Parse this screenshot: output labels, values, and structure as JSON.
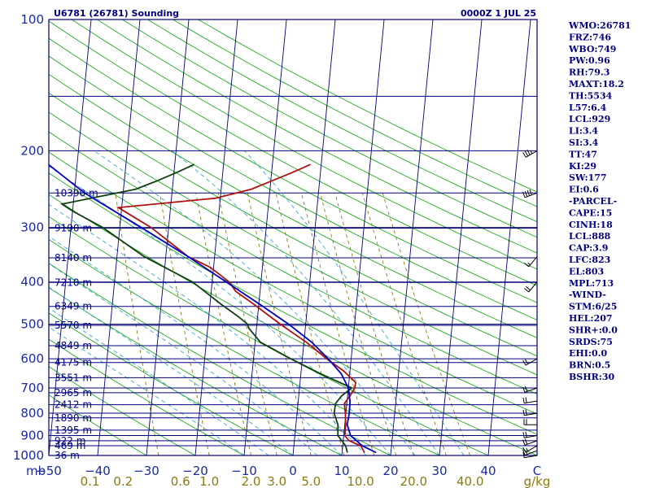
{
  "header": {
    "station": "U6781 (26781) Sounding",
    "time": "0000Z  1 JUL 25"
  },
  "indices": [
    "WMO:26781",
    "FRZ:746",
    "WBO:749",
    "PW:0.96",
    "RH:79.3",
    "MAXT:18.2",
    "TH:5534",
    "L57:6.4",
    "LCL:929",
    "LI:3.4",
    "SI:3.4",
    "TT:47",
    "KI:29",
    "SW:177",
    "EI:0.6",
    "-PARCEL-",
    "CAPE:15",
    "CINH:18",
    "LCL:888",
    "CAP:3.9",
    "LFC:823",
    "EL:803",
    "MPL:713",
    "-WIND-",
    "STM:6/25",
    "HEL:207",
    "SHR+:0.0",
    "SRDS:75",
    "EHI:0.0",
    "BRN:0.5",
    "BSHR:30"
  ],
  "colors": {
    "frame": "#00007a",
    "isobar": "#00007a",
    "isotherm": "#00007a",
    "dry_adiabat": "#22aa22",
    "moist_adiabat": "#3aaad0",
    "mixing_ratio": "#8a7a10",
    "temperature": "#b01010",
    "dewpoint": "#104010",
    "parcel": "#0000c0",
    "wind_barb": "#000000"
  },
  "chart_data": {
    "type": "skew-t",
    "pressure_axis_label": "mb",
    "y_scale": "log",
    "ylim": [
      1000,
      100
    ],
    "xlim": [
      -50,
      50
    ],
    "pressure_ticks": [
      {
        "p": 100,
        "label": "100"
      },
      {
        "p": 200,
        "label": "200"
      },
      {
        "p": 300,
        "label": "300"
      },
      {
        "p": 400,
        "label": "400"
      },
      {
        "p": 500,
        "label": "500"
      },
      {
        "p": 600,
        "label": "600"
      },
      {
        "p": 700,
        "label": "700"
      },
      {
        "p": 800,
        "label": "800"
      },
      {
        "p": 900,
        "label": "900"
      },
      {
        "p": 1000,
        "label": "1000"
      }
    ],
    "temperature_ticks": [
      {
        "t": -50,
        "label": "−50"
      },
      {
        "t": -40,
        "label": "−40"
      },
      {
        "t": -30,
        "label": "−30"
      },
      {
        "t": -20,
        "label": "−20"
      },
      {
        "t": -10,
        "label": "−10"
      },
      {
        "t": 0,
        "label": "0"
      },
      {
        "t": 10,
        "label": "10"
      },
      {
        "t": 20,
        "label": "20"
      },
      {
        "t": 30,
        "label": "30"
      },
      {
        "t": 40,
        "label": "40"
      },
      {
        "t": 50,
        "label": "C"
      }
    ],
    "mixing_ratio_ticks": [
      {
        "w": 0.1,
        "label": "0.1"
      },
      {
        "w": 0.2,
        "label": "0.2"
      },
      {
        "w": 0.6,
        "label": "0.6"
      },
      {
        "w": 1.0,
        "label": "1.0"
      },
      {
        "w": 2.0,
        "label": "2.0"
      },
      {
        "w": 3.0,
        "label": "3.0"
      },
      {
        "w": 5.0,
        "label": "5.0"
      },
      {
        "w": 10.0,
        "label": "10.0"
      },
      {
        "w": 20.0,
        "label": "20.0"
      },
      {
        "w": 40.0,
        "label": "40.0"
      }
    ],
    "mixing_ratio_unit": "g/kg",
    "mandatory_levels": [
      {
        "p": 1000,
        "height": "36 m"
      },
      {
        "p": 950,
        "height": "469 m"
      },
      {
        "p": 925,
        "height": "922 m"
      },
      {
        "p": 875,
        "height": "1395 m"
      },
      {
        "p": 820,
        "height": "1890 m"
      },
      {
        "p": 765,
        "height": "2412 m"
      },
      {
        "p": 718,
        "height": "2965 m"
      },
      {
        "p": 663,
        "height": "3551 m"
      },
      {
        "p": 612,
        "height": "4175 m"
      },
      {
        "p": 560,
        "height": "4849 m"
      },
      {
        "p": 503,
        "height": "5570 m"
      },
      {
        "p": 455,
        "height": "6349 m"
      },
      {
        "p": 401,
        "height": "7210 m"
      },
      {
        "p": 352,
        "height": "8140 m"
      },
      {
        "p": 301,
        "height": "9190 m"
      },
      {
        "p": 250,
        "height": "10390 m"
      }
    ],
    "series": [
      {
        "name": "",
        "role": "temperature",
        "points": [
          {
            "p": 985,
            "t": 14.6
          },
          {
            "p": 950,
            "t": 13.7
          },
          {
            "p": 925,
            "t": 11.2
          },
          {
            "p": 900,
            "t": 10.2
          },
          {
            "p": 850,
            "t": 10.2
          },
          {
            "p": 800,
            "t": 9.9
          },
          {
            "p": 760,
            "t": 9.5
          },
          {
            "p": 730,
            "t": 10.5
          },
          {
            "p": 700,
            "t": 11.3
          },
          {
            "p": 680,
            "t": 11.4
          },
          {
            "p": 640,
            "t": 8.7
          },
          {
            "p": 600,
            "t": 5.0
          },
          {
            "p": 550,
            "t": 0.5
          },
          {
            "p": 500,
            "t": -5.2
          },
          {
            "p": 450,
            "t": -11.0
          },
          {
            "p": 420,
            "t": -15.0
          },
          {
            "p": 400,
            "t": -16.5
          },
          {
            "p": 370,
            "t": -20.7
          },
          {
            "p": 350,
            "t": -25.4
          },
          {
            "p": 300,
            "t": -33.6
          },
          {
            "p": 270,
            "t": -40.7
          },
          {
            "p": 257,
            "t": -21.0
          },
          {
            "p": 245,
            "t": -13.8
          },
          {
            "p": 235,
            "t": -10.0
          },
          {
            "p": 224,
            "t": -5.6
          },
          {
            "p": 215,
            "t": -2.2
          }
        ]
      },
      {
        "name": "",
        "role": "dewpoint",
        "points": [
          {
            "p": 985,
            "t": 11.1
          },
          {
            "p": 950,
            "t": 10.6
          },
          {
            "p": 900,
            "t": 8.8
          },
          {
            "p": 850,
            "t": 8.6
          },
          {
            "p": 800,
            "t": 7.6
          },
          {
            "p": 760,
            "t": 7.7
          },
          {
            "p": 730,
            "t": 8.8
          },
          {
            "p": 700,
            "t": 10.7
          },
          {
            "p": 650,
            "t": 4.1
          },
          {
            "p": 600,
            "t": -2.4
          },
          {
            "p": 550,
            "t": -8.9
          },
          {
            "p": 510,
            "t": -11.6
          },
          {
            "p": 500,
            "t": -11.9
          },
          {
            "p": 480,
            "t": -14.0
          },
          {
            "p": 450,
            "t": -17.7
          },
          {
            "p": 400,
            "t": -24.0
          },
          {
            "p": 350,
            "t": -34.4
          },
          {
            "p": 300,
            "t": -43.5
          },
          {
            "p": 275,
            "t": -50.0
          },
          {
            "p": 265,
            "t": -52.3
          },
          {
            "p": 255,
            "t": -45.0
          },
          {
            "p": 245,
            "t": -37.5
          },
          {
            "p": 235,
            "t": -33.5
          },
          {
            "p": 224,
            "t": -29.3
          },
          {
            "p": 215,
            "t": -26.0
          }
        ]
      },
      {
        "name": "",
        "role": "parcel",
        "points": [
          {
            "p": 985,
            "t": 17.0
          },
          {
            "p": 950,
            "t": 14.0
          },
          {
            "p": 900,
            "t": 11.4
          },
          {
            "p": 850,
            "t": 10.5
          },
          {
            "p": 800,
            "t": 10.7
          },
          {
            "p": 750,
            "t": 10.6
          },
          {
            "p": 700,
            "t": 10.0
          },
          {
            "p": 650,
            "t": 8.3
          },
          {
            "p": 600,
            "t": 5.3
          },
          {
            "p": 550,
            "t": 1.6
          },
          {
            "p": 500,
            "t": -3.5
          },
          {
            "p": 450,
            "t": -9.8
          },
          {
            "p": 400,
            "t": -17.1
          },
          {
            "p": 350,
            "t": -25.4
          },
          {
            "p": 300,
            "t": -35.6
          },
          {
            "p": 250,
            "t": -47.9
          },
          {
            "p": 200,
            "t": -59.7
          },
          {
            "p": 150,
            "t": -75.2
          },
          {
            "p": 120,
            "t": -87.0
          },
          {
            "p": 100,
            "t": -96.9
          }
        ]
      }
    ],
    "wind_barbs": [
      {
        "p": 1000,
        "dir": 260,
        "kt": 10
      },
      {
        "p": 975,
        "dir": 250,
        "kt": 15
      },
      {
        "p": 950,
        "dir": 240,
        "kt": 15
      },
      {
        "p": 925,
        "dir": 250,
        "kt": 20
      },
      {
        "p": 900,
        "dir": 260,
        "kt": 20
      },
      {
        "p": 850,
        "dir": 270,
        "kt": 20
      },
      {
        "p": 800,
        "dir": 260,
        "kt": 20
      },
      {
        "p": 750,
        "dir": 260,
        "kt": 20
      },
      {
        "p": 700,
        "dir": 250,
        "kt": 20
      },
      {
        "p": 600,
        "dir": 240,
        "kt": 20
      },
      {
        "p": 400,
        "dir": 220,
        "kt": 20
      },
      {
        "p": 350,
        "dir": 220,
        "kt": 15
      },
      {
        "p": 250,
        "dir": 250,
        "kt": 40
      },
      {
        "p": 200,
        "dir": 240,
        "kt": 35
      }
    ]
  }
}
